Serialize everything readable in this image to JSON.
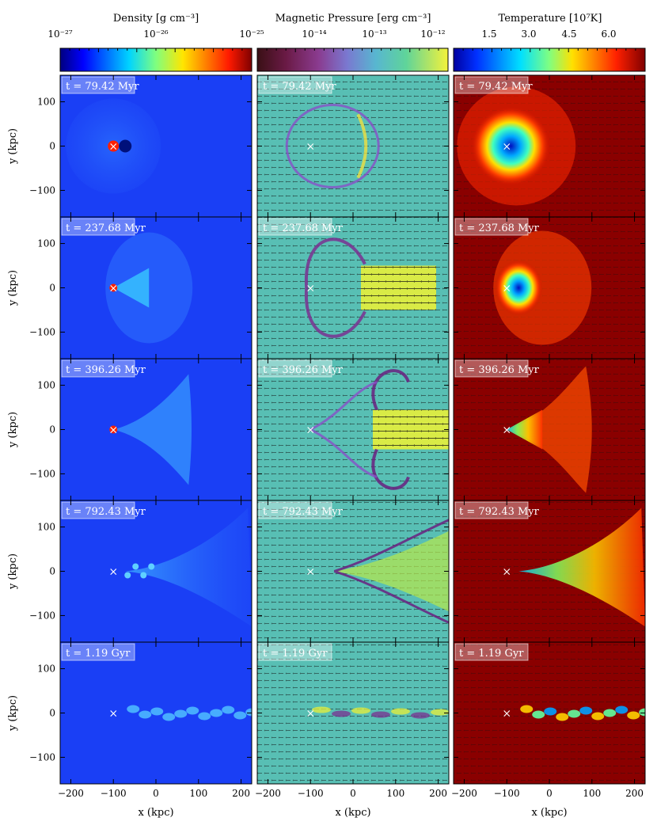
{
  "colorbars": [
    {
      "label": "Density [g cm⁻³]",
      "ticks": [
        "10⁻²⁷",
        "10⁻²⁶",
        "10⁻²⁵"
      ],
      "colormap": "jet"
    },
    {
      "label": "Magnetic Pressure [erg cm⁻³]",
      "ticks": [
        "10⁻¹⁴",
        "10⁻¹³",
        "10⁻¹²"
      ],
      "colormap": "viridis-like (dark red-brown to yellow)"
    },
    {
      "label": "Temperature [10⁷K]",
      "ticks": [
        "1.5",
        "3.0",
        "4.5",
        "6.0"
      ],
      "colormap": "jet"
    }
  ],
  "time_labels": [
    "t = 79.42 Myr",
    "t = 237.68 Myr",
    "t = 396.26 Myr",
    "t = 792.43 Myr",
    "t = 1.19 Gyr"
  ],
  "axes": {
    "xlabel": "x  (kpc)",
    "ylabel": "y  (kpc)",
    "xticks": [
      "−200",
      "−100",
      "0",
      "100",
      "200"
    ],
    "yticks": [
      "100",
      "0",
      "−100"
    ],
    "xlim": [
      -225,
      225
    ],
    "ylim": [
      -160,
      160
    ]
  },
  "marker": {
    "symbol": "×",
    "x": -100,
    "y": 0
  },
  "colors": {
    "density_bg": "#1a3ff5",
    "magnetic_bg": "#58bfb4",
    "temperature_bg": "#8a0000"
  }
}
